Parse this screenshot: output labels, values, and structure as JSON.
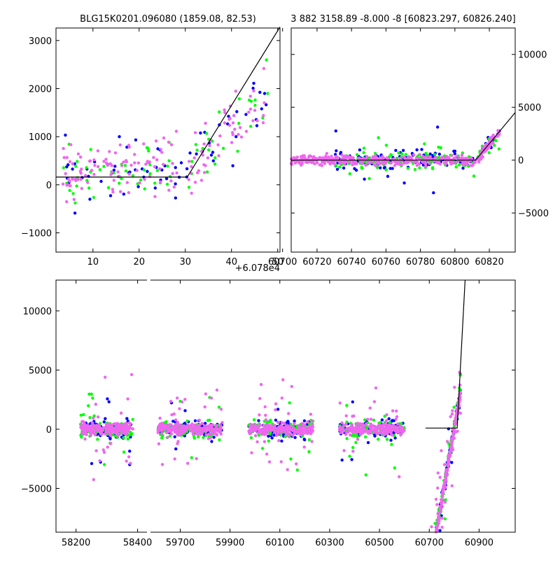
{
  "chart_data": [
    {
      "type": "scatter",
      "title": "BLG15K0201.096080 (1859.08, 82.53)",
      "xlim": [
        2,
        50.5
      ],
      "ylim": [
        -1400,
        3260
      ],
      "xticks": [
        "10",
        "20",
        "30",
        "40",
        "50"
      ],
      "xtick_values": [
        10,
        20,
        30,
        40,
        50
      ],
      "yticks": [
        "−1000",
        "0",
        "1000",
        "2000",
        "3000"
      ],
      "ytick_values": [
        -1000,
        0,
        1000,
        2000,
        3000
      ],
      "x_offset_label": "+6.078e4",
      "model_line": [
        [
          2,
          160
        ],
        [
          30.4,
          160
        ],
        [
          50.5,
          3280
        ]
      ],
      "series": [
        {
          "color": "#0000ff",
          "x_range": [
            3,
            48
          ],
          "y_center": 700,
          "y_spread": 900,
          "count": 70,
          "seed": 11
        },
        {
          "color": "#00ff00",
          "x_range": [
            3,
            48
          ],
          "y_center": 700,
          "y_spread": 900,
          "count": 70,
          "seed": 23
        },
        {
          "color": "#ee66ee",
          "x_range": [
            3,
            48
          ],
          "y_center": 700,
          "y_spread": 800,
          "count": 150,
          "seed": 37
        }
      ]
    },
    {
      "type": "scatter",
      "title": "3 882 3158.89 -8.000 -8 [60823.297, 60826.240]",
      "xlim": [
        60705,
        60835
      ],
      "ylim": [
        -8700,
        12500
      ],
      "xticks": [
        "60700",
        "60720",
        "60740",
        "60760",
        "60780",
        "60800",
        "60820"
      ],
      "xtick_values": [
        60700,
        60720,
        60740,
        60760,
        60780,
        60800,
        60820
      ],
      "yticks": [
        "−5000",
        "0",
        "5000",
        "10000"
      ],
      "ytick_values": [
        -5000,
        0,
        5000,
        10000
      ],
      "model_line": [
        [
          60705,
          0
        ],
        [
          60812,
          0
        ],
        [
          60835,
          4500
        ]
      ],
      "series": [
        {
          "color": "#0000ff",
          "x_range": [
            60730,
            60826
          ],
          "y_center": 0,
          "y_spread": 1200,
          "count": 150,
          "seed": 41
        },
        {
          "color": "#00ff00",
          "x_range": [
            60730,
            60826
          ],
          "y_center": 0,
          "y_spread": 1200,
          "count": 150,
          "seed": 53
        },
        {
          "color": "#ee66ee",
          "x_range": [
            60705,
            60826
          ],
          "y_center": 0,
          "y_spread": 700,
          "count": 400,
          "seed": 67
        }
      ]
    },
    {
      "type": "scatter",
      "title": "",
      "ylim": [
        -8700,
        12600
      ],
      "yticks": [
        "−5000",
        "0",
        "5000",
        "10000"
      ],
      "ytick_values": [
        -5000,
        0,
        5000,
        10000
      ],
      "segments": [
        {
          "xlim": [
            58135,
            58435
          ],
          "xticks": [
            "58200",
            "58400"
          ],
          "xtick_values": [
            58200,
            58400
          ],
          "x_range": [
            58215,
            58385
          ]
        },
        {
          "xlim": [
            59575,
            61045
          ],
          "xticks": [
            "59700",
            "59900",
            "60100",
            "60300",
            "60500",
            "60700",
            "60900"
          ],
          "xtick_values": [
            59700,
            59900,
            60100,
            60300,
            60500,
            60700,
            60900
          ],
          "x_ranges": [
            [
              59610,
              59870
            ],
            [
              59975,
              60235
            ],
            [
              60340,
              60600
            ],
            [
              60700,
              60826
            ]
          ]
        }
      ],
      "model_line": [
        [
          60685,
          100
        ],
        [
          60812,
          100
        ],
        [
          60845,
          13000
        ]
      ],
      "series_colors": [
        "#0000ff",
        "#00ff00",
        "#ee66ee"
      ]
    }
  ]
}
